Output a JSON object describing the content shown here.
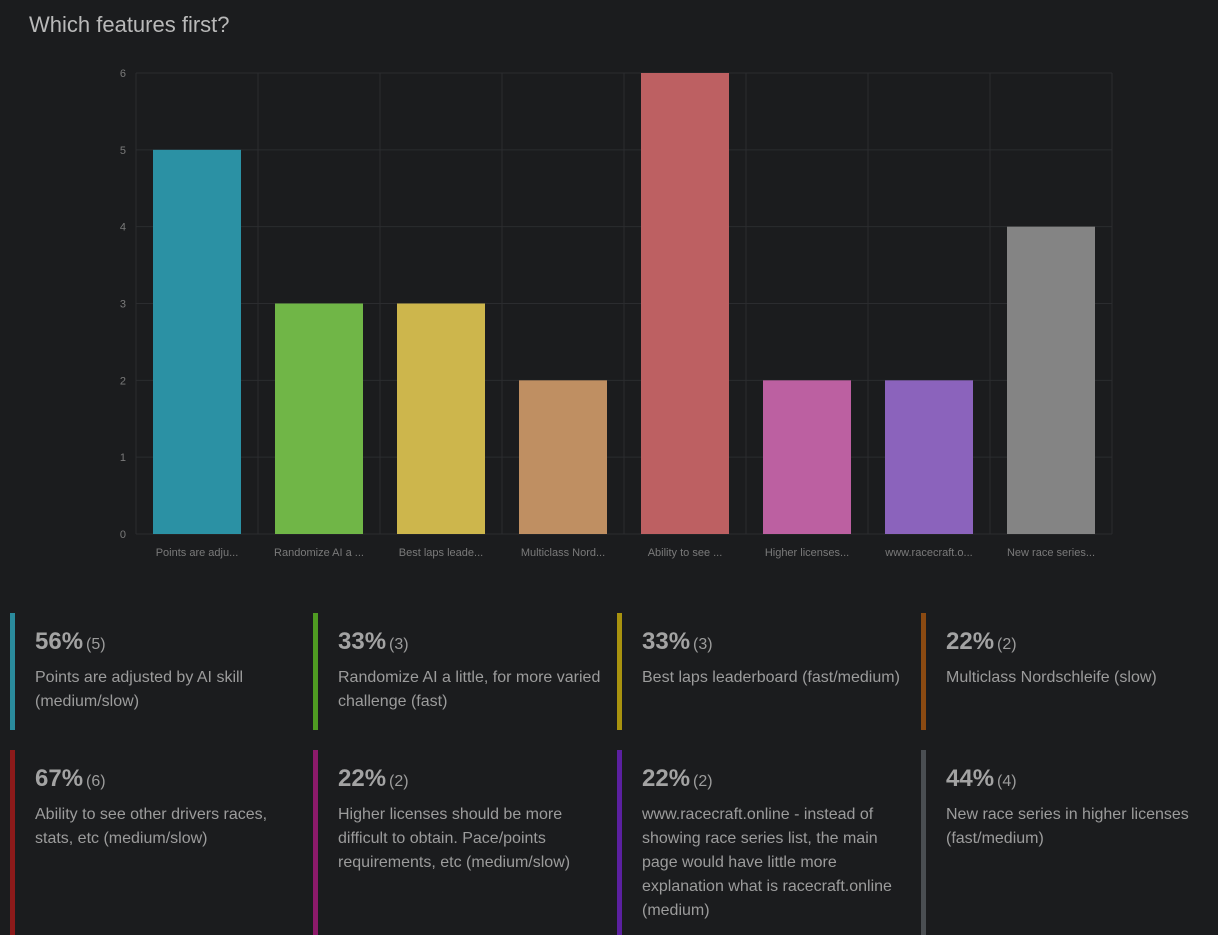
{
  "title": "Which features first?",
  "chart_data": {
    "type": "bar",
    "ylim": [
      0,
      6
    ],
    "yticks": [
      "0",
      "1",
      "2",
      "3",
      "4",
      "5",
      "6"
    ],
    "grid": true,
    "categories": [
      "Points are adju...",
      "Randomize AI a ...",
      "Best laps leade...",
      "Multiclass Nord...",
      "Ability to see ...",
      "Higher licenses...",
      "www.racecraft.o...",
      "New race series..."
    ],
    "values": [
      5,
      3,
      3,
      2,
      6,
      2,
      2,
      4
    ],
    "colors": [
      "#2b91a4",
      "#70b647",
      "#cdb64c",
      "#bf8f62",
      "#bd6062",
      "#bc60a1",
      "#8b63bc",
      "#848484"
    ]
  },
  "cards": [
    {
      "pct": "56%",
      "count": "(5)",
      "label": "Points are adjusted by AI skill (medium/slow)",
      "color": "#2a8a9c"
    },
    {
      "pct": "33%",
      "count": "(3)",
      "label": "Randomize AI a little, for more varied challenge (fast)",
      "color": "#4f9b22"
    },
    {
      "pct": "33%",
      "count": "(3)",
      "label": "Best laps leaderboard (fast/medium)",
      "color": "#a8920f"
    },
    {
      "pct": "22%",
      "count": "(2)",
      "label": "Multiclass Nordschleife (slow)",
      "color": "#8b4a12"
    },
    {
      "pct": "67%",
      "count": "(6)",
      "label": "Ability to see other drivers races, stats, etc (medium/slow)",
      "color": "#8c1a1a"
    },
    {
      "pct": "22%",
      "count": "(2)",
      "label": "Higher licenses should be more difficult to obtain. Pace/points requirements, etc (medium/slow)",
      "color": "#8c1a6a"
    },
    {
      "pct": "22%",
      "count": "(2)",
      "label": "www.racecraft.online - instead of showing race series list, the main page would have little more explanation what is racecraft.online (medium)",
      "color": "#5b20a0"
    },
    {
      "pct": "44%",
      "count": "(4)",
      "label": "New race series in higher licenses (fast/medium)",
      "color": "#4a4e52"
    }
  ]
}
